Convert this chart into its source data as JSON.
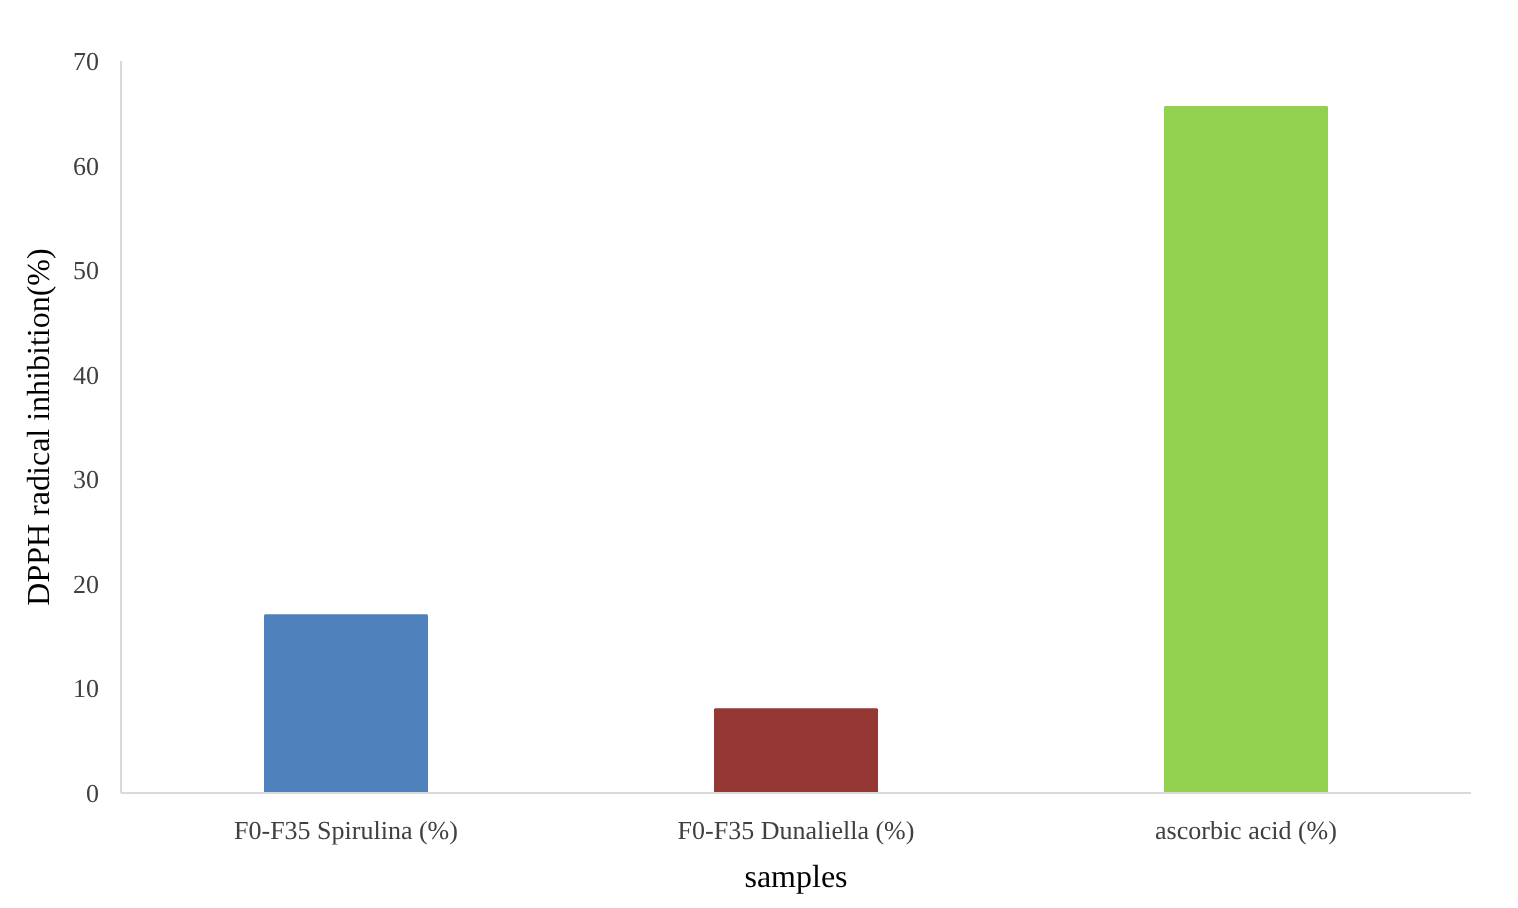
{
  "chart_data": {
    "type": "bar",
    "xlabel": "samples",
    "ylabel": "DPPH radical inhibition(%)",
    "categories": [
      "F0-F35 Spirulina (%)",
      "F0-F35 Dunaliella (%)",
      "ascorbic acid (%)"
    ],
    "values": [
      17,
      8,
      65.6
    ],
    "colors": [
      "#4f81bd",
      "#953735",
      "#92d050"
    ],
    "ylim": [
      0,
      70
    ],
    "yticks": [
      0,
      10,
      20,
      30,
      40,
      50,
      60,
      70
    ],
    "grid": false
  }
}
